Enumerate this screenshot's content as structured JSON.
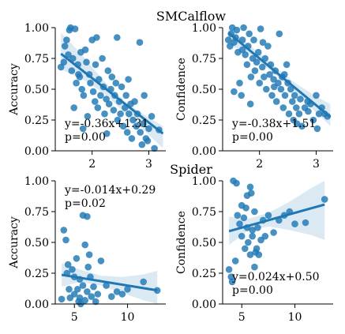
{
  "figure": {
    "section_titles": [
      "SMCalflow",
      "Spider"
    ]
  },
  "chart_data": [
    {
      "id": "smc-accuracy",
      "type": "scatter",
      "ylabel": "Accuracy",
      "xlim": [
        1.35,
        3.3
      ],
      "ylim": [
        0,
        1
      ],
      "xticks": [
        2,
        3
      ],
      "yticks": [
        0.0,
        0.25,
        0.5,
        0.75,
        1.0
      ],
      "xtick_labels": [
        "2",
        "3"
      ],
      "ytick_labels": [
        "0.00",
        "0.25",
        "0.50",
        "0.75",
        "1.00"
      ],
      "annotation": [
        "y=-0.36x+1.31",
        "p=0.00"
      ],
      "annotation_pos": "bottom-left",
      "fit": {
        "slope": -0.36,
        "intercept": 1.31
      },
      "band": [
        [
          1.45,
          0.96,
          0.66
        ],
        [
          1.8,
          0.79,
          0.59
        ],
        [
          2.2,
          0.57,
          0.47
        ],
        [
          2.6,
          0.39,
          0.3
        ],
        [
          3.0,
          0.27,
          0.13
        ],
        [
          3.25,
          0.2,
          0.02
        ]
      ],
      "x": [
        1.45,
        1.5,
        1.52,
        1.55,
        1.58,
        1.6,
        1.62,
        1.64,
        1.66,
        1.7,
        1.72,
        1.75,
        1.78,
        1.8,
        1.82,
        1.85,
        1.88,
        1.9,
        1.92,
        1.95,
        1.97,
        2.0,
        2.02,
        2.05,
        2.08,
        2.1,
        2.12,
        2.15,
        2.18,
        2.2,
        2.22,
        2.25,
        2.28,
        2.3,
        2.33,
        2.35,
        2.38,
        2.4,
        2.42,
        2.45,
        2.48,
        2.5,
        2.52,
        2.55,
        2.58,
        2.6,
        2.62,
        2.65,
        2.68,
        2.7,
        2.72,
        2.75,
        2.78,
        2.8,
        2.85,
        2.88,
        2.9,
        2.95,
        3.0,
        3.05,
        3.1,
        3.18,
        1.68,
        1.76,
        1.84,
        2.06,
        2.26,
        2.44,
        2.64,
        2.84,
        2.92,
        2.98
      ],
      "y": [
        0.68,
        0.72,
        0.85,
        0.9,
        0.78,
        0.98,
        1.0,
        0.65,
        0.75,
        0.99,
        0.55,
        0.7,
        0.6,
        0.8,
        0.5,
        0.45,
        0.82,
        0.72,
        0.28,
        0.62,
        0.55,
        0.9,
        0.48,
        0.4,
        0.92,
        0.35,
        0.58,
        0.45,
        0.75,
        0.52,
        0.3,
        0.42,
        0.65,
        0.38,
        0.5,
        0.6,
        0.33,
        0.45,
        0.55,
        0.25,
        0.4,
        0.3,
        0.52,
        0.2,
        0.35,
        0.45,
        0.15,
        0.3,
        0.38,
        0.1,
        0.25,
        0.4,
        0.2,
        0.3,
        0.15,
        0.05,
        0.22,
        0.1,
        0.18,
        0.28,
        0.02,
        0.17,
        0.35,
        0.62,
        0.18,
        0.7,
        0.14,
        0.92,
        0.58,
        0.88,
        0.45,
        0.08
      ]
    },
    {
      "id": "smc-confidence",
      "type": "scatter",
      "ylabel": "Confidence",
      "xlim": [
        1.35,
        3.3
      ],
      "ylim": [
        0,
        1
      ],
      "xticks": [
        2,
        3
      ],
      "yticks": [
        0.0,
        0.25,
        0.5,
        0.75,
        1.0
      ],
      "xtick_labels": [
        "2",
        "3"
      ],
      "ytick_labels": [
        "0.00",
        "0.25",
        "0.50",
        "0.75",
        "1.00"
      ],
      "annotation": [
        "y=-0.38x+1.51",
        "p=0.00"
      ],
      "annotation_pos": "bottom-left",
      "fit": {
        "slope": -0.38,
        "intercept": 1.51
      },
      "band": [
        [
          1.45,
          0.99,
          0.86
        ],
        [
          1.8,
          0.87,
          0.79
        ],
        [
          2.2,
          0.71,
          0.65
        ],
        [
          2.6,
          0.56,
          0.49
        ],
        [
          3.0,
          0.44,
          0.31
        ],
        [
          3.25,
          0.38,
          0.2
        ]
      ],
      "x": [
        1.45,
        1.48,
        1.5,
        1.52,
        1.55,
        1.58,
        1.6,
        1.62,
        1.65,
        1.68,
        1.7,
        1.72,
        1.75,
        1.78,
        1.8,
        1.82,
        1.85,
        1.88,
        1.9,
        1.92,
        1.95,
        1.98,
        2.0,
        2.02,
        2.05,
        2.08,
        2.1,
        2.12,
        2.15,
        2.18,
        2.2,
        2.22,
        2.25,
        2.28,
        2.3,
        2.33,
        2.35,
        2.38,
        2.4,
        2.42,
        2.45,
        2.48,
        2.5,
        2.52,
        2.55,
        2.58,
        2.6,
        2.62,
        2.65,
        2.7,
        2.72,
        2.75,
        2.8,
        2.85,
        2.9,
        2.95,
        3.0,
        3.05,
        3.1,
        3.15,
        3.2,
        1.55,
        1.7,
        1.84,
        2.06,
        2.26,
        2.44,
        2.66,
        2.86,
        3.02
      ],
      "y": [
        0.9,
        0.85,
        0.95,
        1.0,
        0.88,
        0.92,
        0.98,
        0.8,
        0.55,
        0.45,
        0.9,
        1.0,
        0.78,
        0.7,
        0.85,
        0.95,
        0.6,
        0.75,
        0.9,
        0.65,
        0.72,
        0.8,
        0.55,
        0.99,
        0.68,
        0.6,
        0.75,
        0.5,
        0.85,
        0.62,
        0.7,
        0.45,
        0.58,
        0.65,
        0.4,
        0.55,
        0.95,
        0.5,
        0.6,
        0.35,
        0.45,
        0.7,
        0.55,
        0.3,
        0.5,
        0.4,
        0.25,
        0.45,
        0.35,
        0.3,
        0.42,
        0.2,
        0.35,
        0.4,
        0.38,
        0.25,
        0.45,
        0.3,
        0.35,
        0.3,
        0.28,
        0.48,
        0.82,
        0.38,
        0.88,
        0.52,
        0.62,
        0.22,
        0.32,
        0.18
      ]
    },
    {
      "id": "spider-accuracy",
      "type": "scatter",
      "ylabel": "Accuracy",
      "xlim": [
        3.2,
        13.6
      ],
      "ylim": [
        0,
        1
      ],
      "xticks": [
        5,
        10
      ],
      "yticks": [
        0.0,
        0.25,
        0.5,
        0.75,
        1.0
      ],
      "xtick_labels": [
        "5",
        "10"
      ],
      "ytick_labels": [
        "0.00",
        "0.25",
        "0.50",
        "0.75",
        "1.00"
      ],
      "annotation": [
        "y=-0.014x+0.29",
        "p=0.02"
      ],
      "annotation_pos": "top-left",
      "fit": {
        "slope": -0.014,
        "intercept": 0.29
      },
      "band": [
        [
          3.8,
          0.33,
          0.14
        ],
        [
          5.5,
          0.28,
          0.18
        ],
        [
          7.5,
          0.23,
          0.15
        ],
        [
          9.5,
          0.22,
          0.09
        ],
        [
          11.5,
          0.24,
          0.03
        ],
        [
          12.8,
          0.27,
          -0.02
        ]
      ],
      "x": [
        3.8,
        4.0,
        4.2,
        4.4,
        4.5,
        4.6,
        4.8,
        5.0,
        5.0,
        5.2,
        5.3,
        5.5,
        5.5,
        5.6,
        5.8,
        5.8,
        6.0,
        6.0,
        6.2,
        6.2,
        6.4,
        6.5,
        6.6,
        6.8,
        7.0,
        7.2,
        7.5,
        8.0,
        8.5,
        9.0,
        9.5,
        10.0,
        11.5,
        12.8,
        4.3,
        5.4,
        6.3
      ],
      "y": [
        0.04,
        0.6,
        0.52,
        0.32,
        0.12,
        0.05,
        0.28,
        0.22,
        0.08,
        0.37,
        0.12,
        0.05,
        0.2,
        0.0,
        0.72,
        0.15,
        0.03,
        0.48,
        0.71,
        0.1,
        0.4,
        0.22,
        0.06,
        0.14,
        0.02,
        0.08,
        0.35,
        0.15,
        0.06,
        0.1,
        0.08,
        0.12,
        0.18,
        0.11,
        0.25,
        0.02,
        0.3
      ]
    },
    {
      "id": "spider-confidence",
      "type": "scatter",
      "ylabel": "Confidence",
      "xlim": [
        3.2,
        13.6
      ],
      "ylim": [
        0,
        1
      ],
      "xticks": [
        5,
        10
      ],
      "yticks": [
        0.0,
        0.25,
        0.5,
        0.75,
        1.0
      ],
      "xtick_labels": [
        "5",
        "10"
      ],
      "ytick_labels": [
        "0.00",
        "0.25",
        "0.50",
        "0.75",
        "1.00"
      ],
      "annotation": [
        "y=0.024x+0.50",
        "p=0.00"
      ],
      "annotation_pos": "bottom-left",
      "fit": {
        "slope": 0.024,
        "intercept": 0.5
      },
      "band": [
        [
          3.8,
          0.71,
          0.48
        ],
        [
          5.5,
          0.69,
          0.59
        ],
        [
          7.5,
          0.74,
          0.63
        ],
        [
          9.5,
          0.83,
          0.6
        ],
        [
          11.5,
          0.94,
          0.56
        ],
        [
          12.8,
          1.0,
          0.52
        ]
      ],
      "x": [
        3.8,
        4.0,
        4.2,
        4.5,
        4.6,
        4.8,
        5.0,
        5.0,
        5.2,
        5.3,
        5.5,
        5.5,
        5.6,
        5.8,
        5.8,
        6.0,
        6.0,
        6.2,
        6.2,
        6.4,
        6.5,
        6.6,
        6.8,
        7.0,
        7.2,
        7.5,
        8.0,
        8.5,
        9.0,
        9.5,
        10.0,
        11.0,
        12.8,
        4.4,
        5.4,
        6.3,
        4.1,
        5.9
      ],
      "y": [
        0.28,
        0.22,
        1.0,
        0.98,
        0.72,
        0.65,
        0.8,
        0.55,
        0.7,
        0.45,
        0.62,
        0.88,
        0.5,
        0.4,
        0.95,
        0.55,
        0.6,
        0.3,
        0.75,
        0.45,
        0.62,
        0.4,
        0.52,
        0.68,
        0.55,
        0.72,
        0.58,
        0.68,
        0.72,
        0.75,
        0.65,
        0.66,
        0.85,
        0.35,
        0.78,
        0.42,
        0.18,
        0.9
      ]
    }
  ]
}
